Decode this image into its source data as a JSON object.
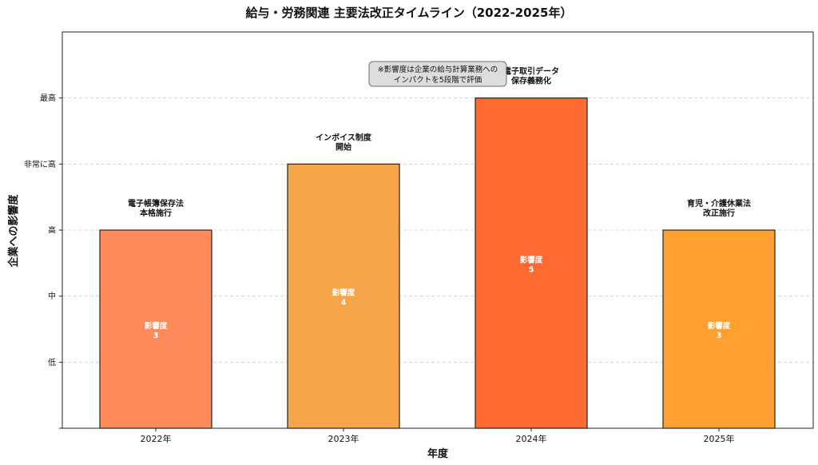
{
  "chart_data": {
    "type": "bar",
    "title": "給与・労務関連 主要法改正タイムライン（2022-2025年）",
    "xlabel": "年度",
    "ylabel": "企業への影響度",
    "categories": [
      "2022年",
      "2023年",
      "2024年",
      "2025年"
    ],
    "values": [
      3,
      4,
      5,
      3
    ],
    "ylim": [
      0,
      6
    ],
    "yticks": [
      {
        "value": 1,
        "label": "低"
      },
      {
        "value": 2,
        "label": "中"
      },
      {
        "value": 3,
        "label": "高"
      },
      {
        "value": 4,
        "label": "非常に高"
      },
      {
        "value": 5,
        "label": "最高"
      }
    ],
    "bar_colors": [
      "#FF8A5C",
      "#F5A64A",
      "#FF6A33",
      "#FFA030"
    ],
    "bar_top_labels": [
      [
        "電子帳簿保存法",
        "本格施行"
      ],
      [
        "インボイス制度",
        "開始"
      ],
      [
        "電子取引データ",
        "保存義務化"
      ],
      [
        "育児・介護休業法",
        "改正施行"
      ]
    ],
    "bar_inner_label": "影響度",
    "annotation": [
      "※影響度は企業の給与計算業務への",
      "インパクトを5段階で評価"
    ],
    "grid": "y-dashed",
    "legend": "none"
  }
}
